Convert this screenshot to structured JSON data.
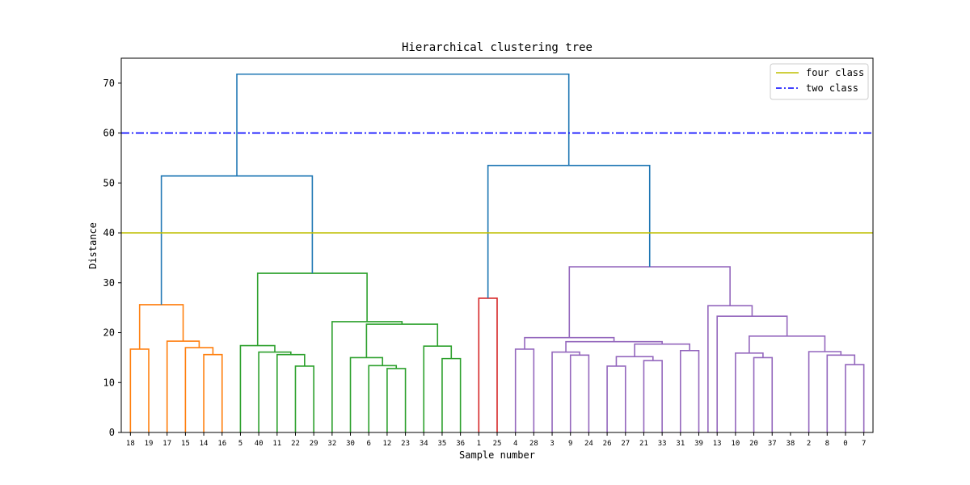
{
  "chart_data": {
    "type": "dendrogram",
    "title": "Hierarchical clustering tree",
    "xlabel": "Sample number",
    "ylabel": "Distance",
    "ylim": [
      0,
      75
    ],
    "yticks": [
      0,
      10,
      20,
      30,
      40,
      50,
      60,
      70
    ],
    "leaves": [
      "18",
      "19",
      "17",
      "15",
      "14",
      "16",
      "5",
      "40",
      "11",
      "22",
      "29",
      "32",
      "30",
      "6",
      "12",
      "23",
      "34",
      "35",
      "36",
      "1",
      "25",
      "4",
      "28",
      "3",
      "9",
      "24",
      "26",
      "27",
      "21",
      "33",
      "31",
      "39",
      "13",
      "10",
      "20",
      "37",
      "38",
      "2",
      "8",
      "0",
      "7"
    ],
    "hlines": [
      {
        "name": "four class",
        "y": 40,
        "color": "#bfbf00",
        "style": "solid"
      },
      {
        "name": "two class",
        "y": 60,
        "color": "#0000ff",
        "style": "dashdot"
      }
    ],
    "legend_position": "upper-right",
    "cluster_colors": {
      "orange": "#ff7f0e",
      "green": "#2ca02c",
      "red": "#d62728",
      "purple": "#9467bd",
      "blue": "#1f77b4"
    },
    "links": [
      {
        "x": [
          0,
          1
        ],
        "h": 16.7,
        "hl": 0,
        "hr": 0,
        "c": "orange"
      },
      {
        "x": [
          4,
          5
        ],
        "h": 15.6,
        "hl": 0,
        "hr": 0,
        "c": "orange"
      },
      {
        "x": [
          3,
          4.5
        ],
        "h": 17.0,
        "hl": 0,
        "hr": 15.6,
        "c": "orange"
      },
      {
        "x": [
          2,
          3.75
        ],
        "h": 18.3,
        "hl": 0,
        "hr": 17.0,
        "c": "orange"
      },
      {
        "x": [
          0.5,
          2.875
        ],
        "h": 25.6,
        "hl": 16.7,
        "hr": 18.3,
        "c": "orange"
      },
      {
        "x": [
          9,
          10
        ],
        "h": 13.3,
        "hl": 0,
        "hr": 0,
        "c": "green"
      },
      {
        "x": [
          8,
          9.5
        ],
        "h": 15.6,
        "hl": 0,
        "hr": 13.3,
        "c": "green"
      },
      {
        "x": [
          7,
          8.75
        ],
        "h": 16.1,
        "hl": 0,
        "hr": 15.6,
        "c": "green"
      },
      {
        "x": [
          6,
          7.875
        ],
        "h": 17.4,
        "hl": 0,
        "hr": 16.1,
        "c": "green"
      },
      {
        "x": [
          14,
          15
        ],
        "h": 12.8,
        "hl": 0,
        "hr": 0,
        "c": "green"
      },
      {
        "x": [
          13,
          14.5
        ],
        "h": 13.4,
        "hl": 0,
        "hr": 12.8,
        "c": "green"
      },
      {
        "x": [
          12,
          13.75
        ],
        "h": 15.0,
        "hl": 0,
        "hr": 13.4,
        "c": "green"
      },
      {
        "x": [
          17,
          18
        ],
        "h": 14.8,
        "hl": 0,
        "hr": 0,
        "c": "green"
      },
      {
        "x": [
          16,
          17.5
        ],
        "h": 17.3,
        "hl": 0,
        "hr": 14.8,
        "c": "green"
      },
      {
        "x": [
          12.875,
          16.75
        ],
        "h": 21.7,
        "hl": 15.0,
        "hr": 17.3,
        "c": "green"
      },
      {
        "x": [
          11,
          14.8125
        ],
        "h": 22.2,
        "hl": 0,
        "hr": 21.7,
        "c": "green"
      },
      {
        "x": [
          6.9375,
          12.90625
        ],
        "h": 31.9,
        "hl": 17.4,
        "hr": 22.2,
        "c": "green"
      },
      {
        "x": [
          19,
          20
        ],
        "h": 26.9,
        "hl": 0,
        "hr": 0,
        "c": "red"
      },
      {
        "x": [
          21,
          22
        ],
        "h": 16.7,
        "hl": 0,
        "hr": 0,
        "c": "purple"
      },
      {
        "x": [
          24,
          25
        ],
        "h": 15.5,
        "hl": 0,
        "hr": 0,
        "c": "purple"
      },
      {
        "x": [
          23,
          24.5
        ],
        "h": 16.1,
        "hl": 0,
        "hr": 15.5,
        "c": "purple"
      },
      {
        "x": [
          26,
          27
        ],
        "h": 13.3,
        "hl": 0,
        "hr": 0,
        "c": "purple"
      },
      {
        "x": [
          28,
          29
        ],
        "h": 14.4,
        "hl": 0,
        "hr": 0,
        "c": "purple"
      },
      {
        "x": [
          26.5,
          28.5
        ],
        "h": 15.2,
        "hl": 13.3,
        "hr": 14.4,
        "c": "purple"
      },
      {
        "x": [
          30,
          31
        ],
        "h": 16.4,
        "hl": 0,
        "hr": 0,
        "c": "purple"
      },
      {
        "x": [
          27.5,
          30.5
        ],
        "h": 17.7,
        "hl": 15.2,
        "hr": 16.4,
        "c": "purple"
      },
      {
        "x": [
          23.75,
          29
        ],
        "h": 18.2,
        "hl": 16.1,
        "hr": 17.7,
        "c": "purple"
      },
      {
        "x": [
          21.5,
          26.375
        ],
        "h": 19.0,
        "hl": 16.7,
        "hr": 18.2,
        "c": "purple"
      },
      {
        "x": [
          34,
          35
        ],
        "h": 15.0,
        "hl": 0,
        "hr": 0,
        "c": "purple"
      },
      {
        "x": [
          33,
          34.5
        ],
        "h": 15.9,
        "hl": 0,
        "hr": 15.0,
        "c": "purple"
      },
      {
        "x": [
          39,
          40
        ],
        "h": 13.6,
        "hl": 0,
        "hr": 0,
        "c": "purple"
      },
      {
        "x": [
          38,
          39.5
        ],
        "h": 15.5,
        "hl": 0,
        "hr": 13.6,
        "c": "purple"
      },
      {
        "x": [
          37,
          38.75
        ],
        "h": 16.2,
        "hl": 0,
        "hr": 15.5,
        "c": "purple"
      },
      {
        "x": [
          33.75,
          37.875
        ],
        "h": 19.3,
        "hl": 15.9,
        "hr": 16.2,
        "c": "purple"
      },
      {
        "x": [
          32,
          35.8125
        ],
        "h": 23.3,
        "hl": 0,
        "hr": 19.3,
        "c": "purple"
      },
      {
        "x": [
          31.5,
          33.90625
        ],
        "h": 25.4,
        "hl": 0,
        "hr": 23.3,
        "c": "purple"
      },
      {
        "x": [
          23.9375,
          32.703125
        ],
        "h": 33.2,
        "hl": 19.0,
        "hr": 25.4,
        "c": "purple"
      },
      {
        "x": [
          1.6875,
          9.921875
        ],
        "h": 51.4,
        "hl": 25.6,
        "hr": 31.9,
        "c": "blue"
      },
      {
        "x": [
          19.5,
          28.3203125
        ],
        "h": 53.5,
        "hl": 26.9,
        "hr": 33.2,
        "c": "blue"
      },
      {
        "x": [
          5.8046875,
          23.91015625
        ],
        "h": 71.8,
        "hl": 51.4,
        "hr": 53.5,
        "c": "blue"
      }
    ]
  }
}
